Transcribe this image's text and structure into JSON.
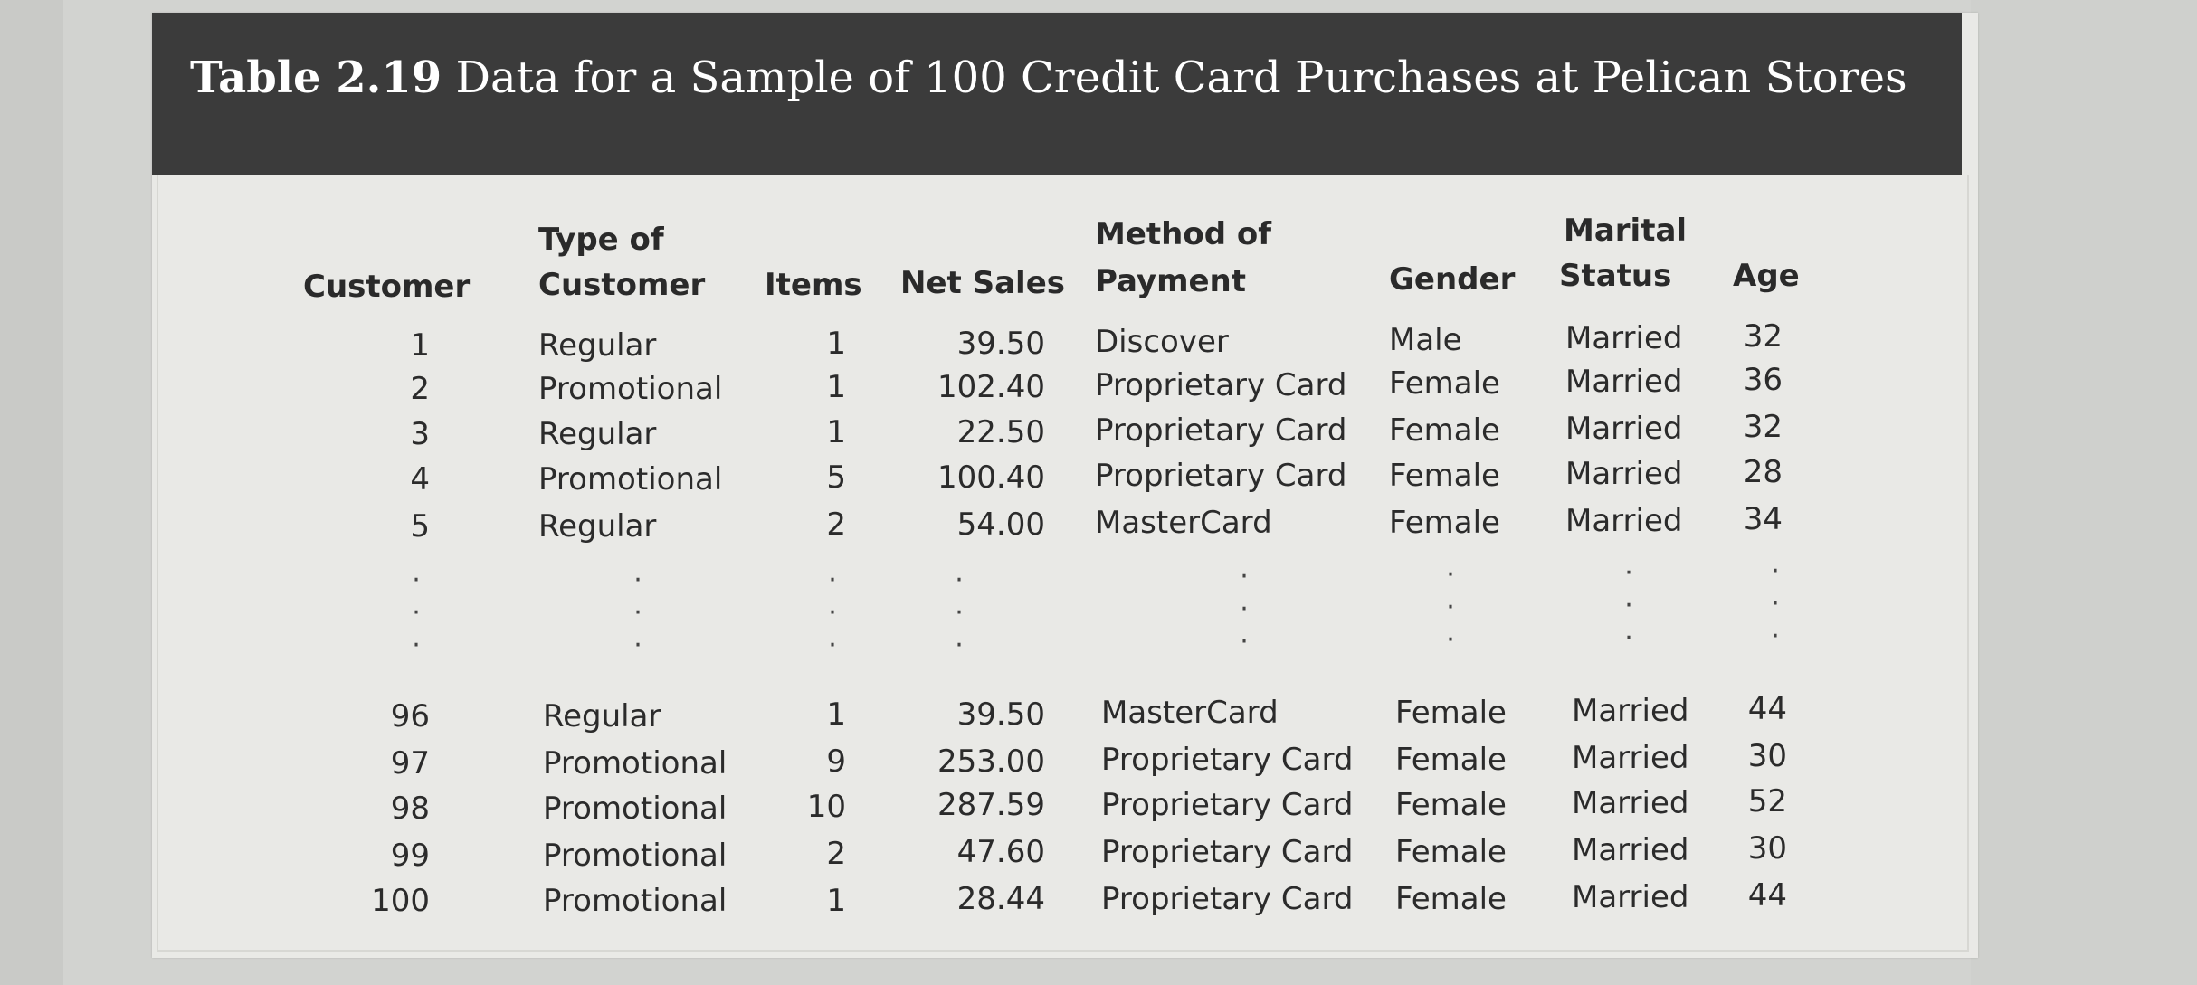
{
  "table": {
    "title_prefix": "Table 2.19",
    "title_rest": "Data for a Sample of 100 Credit Card Purchases at Pelican Stores",
    "headers": {
      "customer": "Customer",
      "type_line1": "Type of",
      "type_line2": "Customer",
      "items": "Items",
      "net_sales": "Net Sales",
      "method_line1": "Method of",
      "method_line2": "Payment",
      "gender": "Gender",
      "marital_line1": "Marital",
      "marital_line2": "Status",
      "age": "Age"
    },
    "rows": [
      {
        "customer": "1",
        "type": "Regular",
        "items": "1",
        "net_sales": "39.50",
        "payment": "Discover",
        "gender": "Male",
        "marital": "Married",
        "age": "32"
      },
      {
        "customer": "2",
        "type": "Promotional",
        "items": "1",
        "net_sales": "102.40",
        "payment": "Proprietary Card",
        "gender": "Female",
        "marital": "Married",
        "age": "36"
      },
      {
        "customer": "3",
        "type": "Regular",
        "items": "1",
        "net_sales": "22.50",
        "payment": "Proprietary Card",
        "gender": "Female",
        "marital": "Married",
        "age": "32"
      },
      {
        "customer": "4",
        "type": "Promotional",
        "items": "5",
        "net_sales": "100.40",
        "payment": "Proprietary Card",
        "gender": "Female",
        "marital": "Married",
        "age": "28"
      },
      {
        "customer": "5",
        "type": "Regular",
        "items": "2",
        "net_sales": "54.00",
        "payment": "MasterCard",
        "gender": "Female",
        "marital": "Married",
        "age": "34"
      },
      {
        "customer": "96",
        "type": "Regular",
        "items": "1",
        "net_sales": "39.50",
        "payment": "MasterCard",
        "gender": "Female",
        "marital": "Married",
        "age": "44"
      },
      {
        "customer": "97",
        "type": "Promotional",
        "items": "9",
        "net_sales": "253.00",
        "payment": "Proprietary Card",
        "gender": "Female",
        "marital": "Married",
        "age": "30"
      },
      {
        "customer": "98",
        "type": "Promotional",
        "items": "10",
        "net_sales": "287.59",
        "payment": "Proprietary Card",
        "gender": "Female",
        "marital": "Married",
        "age": "52"
      },
      {
        "customer": "99",
        "type": "Promotional",
        "items": "2",
        "net_sales": "47.60",
        "payment": "Proprietary Card",
        "gender": "Female",
        "marital": "Married",
        "age": "30"
      },
      {
        "customer": "100",
        "type": "Promotional",
        "items": "1",
        "net_sales": "28.44",
        "payment": "Proprietary Card",
        "gender": "Female",
        "marital": "Married",
        "age": "44"
      }
    ],
    "ellipsis": "·\n·\n·"
  }
}
